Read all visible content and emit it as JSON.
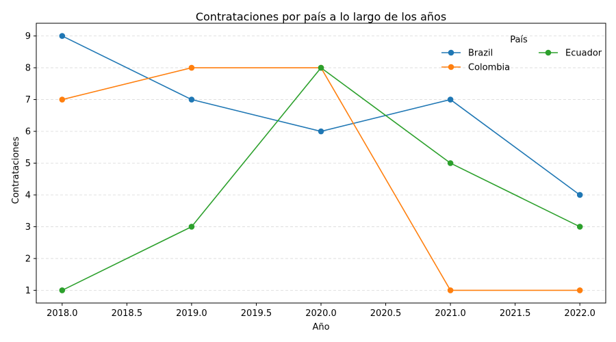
{
  "chart_data": {
    "type": "line",
    "title": "Contrataciones por país a lo largo de los años",
    "xlabel": "Año",
    "ylabel": "Contrataciones",
    "x": [
      2018,
      2019,
      2020,
      2021,
      2022
    ],
    "xlim": [
      2017.8,
      2022.2
    ],
    "ylim": [
      0.6,
      9.4
    ],
    "xticks": [
      2018.0,
      2018.5,
      2019.0,
      2019.5,
      2020.0,
      2020.5,
      2021.0,
      2021.5,
      2022.0
    ],
    "xtick_labels": [
      "2018.0",
      "2018.5",
      "2019.0",
      "2019.5",
      "2020.0",
      "2020.5",
      "2021.0",
      "2021.5",
      "2022.0"
    ],
    "yticks": [
      1,
      2,
      3,
      4,
      5,
      6,
      7,
      8,
      9
    ],
    "ytick_labels": [
      "1",
      "2",
      "3",
      "4",
      "5",
      "6",
      "7",
      "8",
      "9"
    ],
    "grid": "y-dashed",
    "legend_title": "País",
    "legend_position": "top-right",
    "series": [
      {
        "name": "Brazil",
        "color": "#1f77b4",
        "values": [
          9,
          7,
          6,
          7,
          4
        ]
      },
      {
        "name": "Colombia",
        "color": "#ff7f0e",
        "values": [
          7,
          8,
          8,
          1,
          1
        ]
      },
      {
        "name": "Ecuador",
        "color": "#2ca02c",
        "values": [
          1,
          3,
          8,
          5,
          3
        ]
      }
    ]
  }
}
